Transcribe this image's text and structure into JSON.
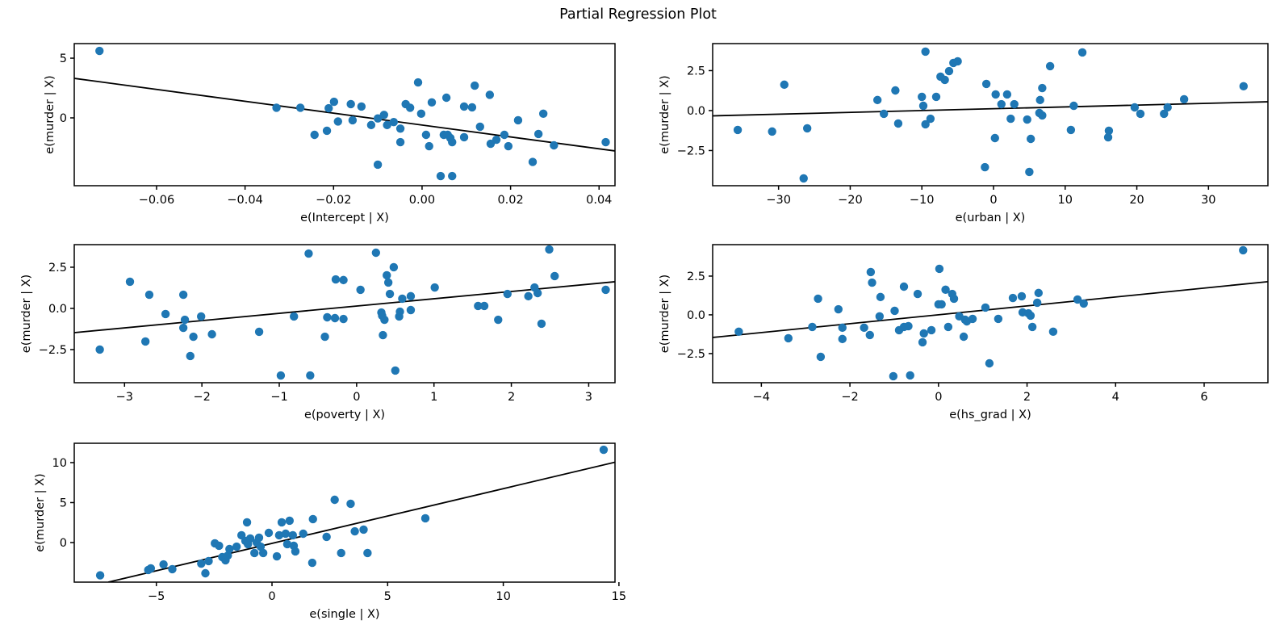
{
  "chart_data": {
    "type": "scatter",
    "title": "Partial Regression Plot",
    "marker_color": "#1f77b4",
    "line_color": "#000000",
    "background_color": "#ffffff",
    "grid": false,
    "legend": "none",
    "subplots": [
      {
        "name": "intercept",
        "xlabel": "e(Intercept | X)",
        "ylabel": "e(murder | X)",
        "xlim": [
          -0.0786,
          0.0436
        ],
        "ylim": [
          -5.68,
          6.22
        ],
        "xticks": [
          -0.06,
          -0.04,
          -0.02,
          0.0,
          0.02,
          0.04
        ],
        "xtick_labels": [
          "−0.06",
          "−0.04",
          "−0.02",
          "0.00",
          "0.02",
          "0.04"
        ],
        "yticks": [
          0,
          5
        ],
        "ytick_labels": [
          "0",
          "5"
        ],
        "regression_line": {
          "x": [
            -0.0786,
            0.0436
          ],
          "y": [
            3.31,
            -2.77
          ]
        },
        "points": [
          [
            -0.0729,
            5.61
          ],
          [
            -0.0329,
            0.85
          ],
          [
            -0.0275,
            0.85
          ],
          [
            -0.0243,
            -1.42
          ],
          [
            -0.0215,
            -1.08
          ],
          [
            -0.0211,
            0.81
          ],
          [
            -0.0199,
            1.35
          ],
          [
            -0.019,
            -0.3
          ],
          [
            -0.0161,
            1.15
          ],
          [
            -0.0157,
            -0.2
          ],
          [
            -0.0137,
            0.95
          ],
          [
            -0.0115,
            -0.6
          ],
          [
            -0.01,
            -0.05
          ],
          [
            -0.01,
            -3.92
          ],
          [
            -0.0086,
            0.25
          ],
          [
            -0.0079,
            -0.6
          ],
          [
            -0.0064,
            -0.35
          ],
          [
            -0.0049,
            -0.9
          ],
          [
            -0.0049,
            -2.03
          ],
          [
            -0.0037,
            1.15
          ],
          [
            -0.0027,
            0.85
          ],
          [
            -0.0009,
            2.97
          ],
          [
            -0.0002,
            0.35
          ],
          [
            0.0009,
            -1.42
          ],
          [
            0.0016,
            -2.37
          ],
          [
            0.0022,
            1.3
          ],
          [
            0.0042,
            -4.87
          ],
          [
            0.0049,
            -1.42
          ],
          [
            0.0055,
            1.69
          ],
          [
            0.0058,
            -1.42
          ],
          [
            0.0064,
            -1.69
          ],
          [
            0.0068,
            -2.03
          ],
          [
            0.0068,
            -4.87
          ],
          [
            0.0095,
            0.95
          ],
          [
            0.0095,
            -1.62
          ],
          [
            0.0113,
            0.88
          ],
          [
            0.0119,
            2.7
          ],
          [
            0.0131,
            -0.74
          ],
          [
            0.0153,
            1.93
          ],
          [
            0.0155,
            -2.17
          ],
          [
            0.0168,
            -1.83
          ],
          [
            0.0186,
            -1.42
          ],
          [
            0.0195,
            -2.37
          ],
          [
            0.0217,
            -0.2
          ],
          [
            0.025,
            -3.69
          ],
          [
            0.0263,
            -1.35
          ],
          [
            0.0274,
            0.35
          ],
          [
            0.0298,
            -2.3
          ],
          [
            0.0415,
            -2.03
          ]
        ]
      },
      {
        "name": "urban",
        "xlabel": "e(urban | X)",
        "ylabel": "e(murder | X)",
        "xlim": [
          -39.2,
          38.3
        ],
        "ylim": [
          -4.7,
          4.19
        ],
        "xticks": [
          -30,
          -20,
          -10,
          0,
          10,
          20,
          30
        ],
        "xtick_labels": [
          "−30",
          "−20",
          "−10",
          "0",
          "10",
          "20",
          "30"
        ],
        "yticks": [
          -2.5,
          0.0,
          2.5
        ],
        "ytick_labels": [
          "−2.5",
          "0.0",
          "2.5"
        ],
        "regression_line": {
          "x": [
            -39.2,
            38.3
          ],
          "y": [
            -0.33,
            0.55
          ]
        },
        "points": [
          [
            -35.7,
            -1.21
          ],
          [
            -30.9,
            -1.31
          ],
          [
            -29.2,
            1.62
          ],
          [
            -26.5,
            -4.24
          ],
          [
            -26.0,
            -1.11
          ],
          [
            -16.2,
            0.66
          ],
          [
            -15.3,
            -0.2
          ],
          [
            -13.7,
            1.26
          ],
          [
            -13.3,
            -0.81
          ],
          [
            -10.0,
            0.86
          ],
          [
            -9.8,
            0.3
          ],
          [
            -9.5,
            3.69
          ],
          [
            -9.5,
            -0.86
          ],
          [
            -8.8,
            -0.51
          ],
          [
            -8.0,
            0.86
          ],
          [
            -7.4,
            2.12
          ],
          [
            -6.8,
            1.92
          ],
          [
            -6.2,
            2.47
          ],
          [
            -5.6,
            2.98
          ],
          [
            -5.0,
            3.08
          ],
          [
            -1.2,
            -3.54
          ],
          [
            -1.0,
            1.67
          ],
          [
            0.2,
            -1.72
          ],
          [
            0.3,
            1.01
          ],
          [
            1.1,
            0.4
          ],
          [
            1.9,
            1.01
          ],
          [
            2.4,
            -0.51
          ],
          [
            2.9,
            0.4
          ],
          [
            4.7,
            -0.56
          ],
          [
            5.0,
            -3.84
          ],
          [
            5.2,
            -1.77
          ],
          [
            6.4,
            -0.15
          ],
          [
            6.5,
            0.66
          ],
          [
            6.8,
            1.41
          ],
          [
            6.8,
            -0.3
          ],
          [
            7.9,
            2.78
          ],
          [
            10.8,
            -1.21
          ],
          [
            11.2,
            0.3
          ],
          [
            12.4,
            3.64
          ],
          [
            16.0,
            -1.67
          ],
          [
            16.1,
            -1.26
          ],
          [
            19.7,
            0.2
          ],
          [
            20.5,
            -0.2
          ],
          [
            23.8,
            -0.2
          ],
          [
            24.3,
            0.2
          ],
          [
            26.6,
            0.71
          ],
          [
            34.9,
            1.52
          ]
        ]
      },
      {
        "name": "poverty",
        "xlabel": "e(poverty | X)",
        "ylabel": "e(murder | X)",
        "xlim": [
          -3.65,
          3.34
        ],
        "ylim": [
          -4.51,
          3.87
        ],
        "xticks": [
          -3,
          -2,
          -1,
          0,
          1,
          2,
          3
        ],
        "xtick_labels": [
          "−3",
          "−2",
          "−1",
          "0",
          "1",
          "2",
          "3"
        ],
        "yticks": [
          -2.5,
          0.0,
          2.5
        ],
        "ytick_labels": [
          "−2.5",
          "0.0",
          "2.5"
        ],
        "regression_line": {
          "x": [
            -3.65,
            3.34
          ],
          "y": [
            -1.47,
            1.62
          ]
        },
        "points": [
          [
            -3.32,
            -2.5
          ],
          [
            -2.93,
            1.62
          ],
          [
            -2.73,
            -2.01
          ],
          [
            -2.68,
            0.83
          ],
          [
            -2.47,
            -0.34
          ],
          [
            -2.24,
            0.83
          ],
          [
            -2.24,
            -1.18
          ],
          [
            -2.22,
            -0.69
          ],
          [
            -2.15,
            -2.89
          ],
          [
            -2.11,
            -1.72
          ],
          [
            -2.01,
            -0.49
          ],
          [
            -1.87,
            -1.57
          ],
          [
            -1.26,
            -1.42
          ],
          [
            -0.98,
            -4.07
          ],
          [
            -0.81,
            -0.49
          ],
          [
            -0.62,
            3.33
          ],
          [
            -0.6,
            -4.07
          ],
          [
            -0.41,
            -1.72
          ],
          [
            -0.38,
            -0.54
          ],
          [
            -0.28,
            -0.59
          ],
          [
            -0.27,
            1.76
          ],
          [
            -0.17,
            1.72
          ],
          [
            -0.17,
            -0.64
          ],
          [
            0.05,
            1.13
          ],
          [
            0.25,
            3.38
          ],
          [
            0.32,
            -0.25
          ],
          [
            0.33,
            -0.44
          ],
          [
            0.34,
            -1.62
          ],
          [
            0.36,
            -0.69
          ],
          [
            0.39,
            2.01
          ],
          [
            0.41,
            1.57
          ],
          [
            0.43,
            0.88
          ],
          [
            0.48,
            2.5
          ],
          [
            0.5,
            -3.77
          ],
          [
            0.55,
            -0.49
          ],
          [
            0.56,
            -0.2
          ],
          [
            0.59,
            0.59
          ],
          [
            0.7,
            0.74
          ],
          [
            0.7,
            -0.1
          ],
          [
            1.01,
            1.27
          ],
          [
            1.57,
            0.15
          ],
          [
            1.65,
            0.15
          ],
          [
            1.83,
            -0.69
          ],
          [
            1.95,
            0.88
          ],
          [
            2.22,
            0.74
          ],
          [
            2.3,
            1.27
          ],
          [
            2.34,
            0.93
          ],
          [
            2.39,
            -0.93
          ],
          [
            2.49,
            3.58
          ],
          [
            2.56,
            1.96
          ],
          [
            3.22,
            1.13
          ]
        ]
      },
      {
        "name": "hs_grad",
        "xlabel": "e(hs_grad | X)",
        "ylabel": "e(murder | X)",
        "xlim": [
          -5.1,
          7.44
        ],
        "ylim": [
          -4.38,
          4.53
        ],
        "xticks": [
          -4,
          -2,
          0,
          2,
          4,
          6
        ],
        "xtick_labels": [
          "−4",
          "−2",
          "0",
          "2",
          "4",
          "6"
        ],
        "yticks": [
          -2.5,
          0.0,
          2.5
        ],
        "ytick_labels": [
          "−2.5",
          "0.0",
          "2.5"
        ],
        "regression_line": {
          "x": [
            -5.1,
            7.44
          ],
          "y": [
            -1.46,
            2.14
          ]
        },
        "points": [
          [
            -4.51,
            -1.09
          ],
          [
            -3.39,
            -1.51
          ],
          [
            -2.85,
            -0.78
          ],
          [
            -2.72,
            1.04
          ],
          [
            -2.66,
            -2.71
          ],
          [
            -2.26,
            0.36
          ],
          [
            -2.17,
            -0.83
          ],
          [
            -2.17,
            -1.56
          ],
          [
            -1.68,
            -0.83
          ],
          [
            -1.55,
            -1.3
          ],
          [
            -1.53,
            2.76
          ],
          [
            -1.5,
            2.08
          ],
          [
            -1.33,
            -0.1
          ],
          [
            -1.31,
            1.15
          ],
          [
            -1.02,
            -3.96
          ],
          [
            -0.99,
            0.26
          ],
          [
            -0.89,
            -0.99
          ],
          [
            -0.78,
            1.82
          ],
          [
            -0.78,
            -0.78
          ],
          [
            -0.68,
            -0.73
          ],
          [
            -0.64,
            -3.91
          ],
          [
            -0.47,
            1.35
          ],
          [
            -0.36,
            -1.77
          ],
          [
            -0.33,
            -1.2
          ],
          [
            -0.16,
            -0.99
          ],
          [
            0.0,
            0.68
          ],
          [
            0.02,
            2.97
          ],
          [
            0.07,
            0.68
          ],
          [
            0.16,
            1.62
          ],
          [
            0.22,
            -0.78
          ],
          [
            0.31,
            1.35
          ],
          [
            0.35,
            1.04
          ],
          [
            0.47,
            -0.1
          ],
          [
            0.57,
            -1.41
          ],
          [
            0.6,
            -0.31
          ],
          [
            0.64,
            -0.42
          ],
          [
            0.77,
            -0.26
          ],
          [
            1.06,
            0.47
          ],
          [
            1.15,
            -3.13
          ],
          [
            1.35,
            -0.26
          ],
          [
            1.68,
            1.09
          ],
          [
            1.88,
            1.2
          ],
          [
            1.9,
            0.16
          ],
          [
            2.03,
            0.1
          ],
          [
            2.08,
            -0.05
          ],
          [
            2.12,
            -0.78
          ],
          [
            2.23,
            0.78
          ],
          [
            2.26,
            1.41
          ],
          [
            2.59,
            -1.09
          ],
          [
            3.14,
            0.99
          ],
          [
            3.28,
            0.73
          ],
          [
            6.88,
            4.17
          ]
        ]
      },
      {
        "name": "single",
        "xlabel": "e(single | X)",
        "ylabel": "e(murder | X)",
        "xlim": [
          -8.55,
          14.83
        ],
        "ylim": [
          -4.95,
          12.42
        ],
        "xticks": [
          -5,
          0,
          5,
          10,
          15
        ],
        "xtick_labels": [
          "−5",
          "0",
          "5",
          "10",
          "15"
        ],
        "yticks": [
          0,
          5,
          10
        ],
        "ytick_labels": [
          "0",
          "5",
          "10"
        ],
        "regression_line": {
          "x": [
            -7.08,
            14.83
          ],
          "y": [
            -4.95,
            10.05
          ]
        },
        "points": [
          [
            -7.43,
            -4.1
          ],
          [
            -5.35,
            -3.43
          ],
          [
            -5.24,
            -3.23
          ],
          [
            -4.69,
            -2.73
          ],
          [
            -4.31,
            -3.33
          ],
          [
            -3.06,
            -2.63
          ],
          [
            -2.88,
            -3.84
          ],
          [
            -2.74,
            -2.32
          ],
          [
            -2.47,
            -0.1
          ],
          [
            -2.29,
            -0.4
          ],
          [
            -2.15,
            -1.82
          ],
          [
            -2.01,
            -2.22
          ],
          [
            -1.91,
            -1.62
          ],
          [
            -1.84,
            -0.81
          ],
          [
            -1.53,
            -0.51
          ],
          [
            -1.32,
            0.91
          ],
          [
            -1.15,
            0.2
          ],
          [
            -1.08,
            2.53
          ],
          [
            -1.04,
            -0.2
          ],
          [
            -0.94,
            0.51
          ],
          [
            -0.76,
            -1.31
          ],
          [
            -0.66,
            0.0
          ],
          [
            -0.56,
            0.61
          ],
          [
            -0.49,
            -0.51
          ],
          [
            -0.38,
            -1.31
          ],
          [
            -0.14,
            1.21
          ],
          [
            0.21,
            -1.72
          ],
          [
            0.31,
            0.91
          ],
          [
            0.42,
            2.53
          ],
          [
            0.59,
            1.11
          ],
          [
            0.66,
            -0.2
          ],
          [
            0.76,
            2.73
          ],
          [
            0.9,
            0.91
          ],
          [
            0.94,
            -0.4
          ],
          [
            1.01,
            -1.11
          ],
          [
            1.35,
            1.11
          ],
          [
            1.74,
            -2.53
          ],
          [
            1.77,
            2.93
          ],
          [
            2.36,
            0.71
          ],
          [
            2.71,
            5.35
          ],
          [
            2.99,
            -1.31
          ],
          [
            3.4,
            4.85
          ],
          [
            3.58,
            1.41
          ],
          [
            3.96,
            1.62
          ],
          [
            4.13,
            -1.31
          ],
          [
            6.63,
            3.03
          ],
          [
            14.34,
            11.61
          ]
        ]
      }
    ]
  }
}
